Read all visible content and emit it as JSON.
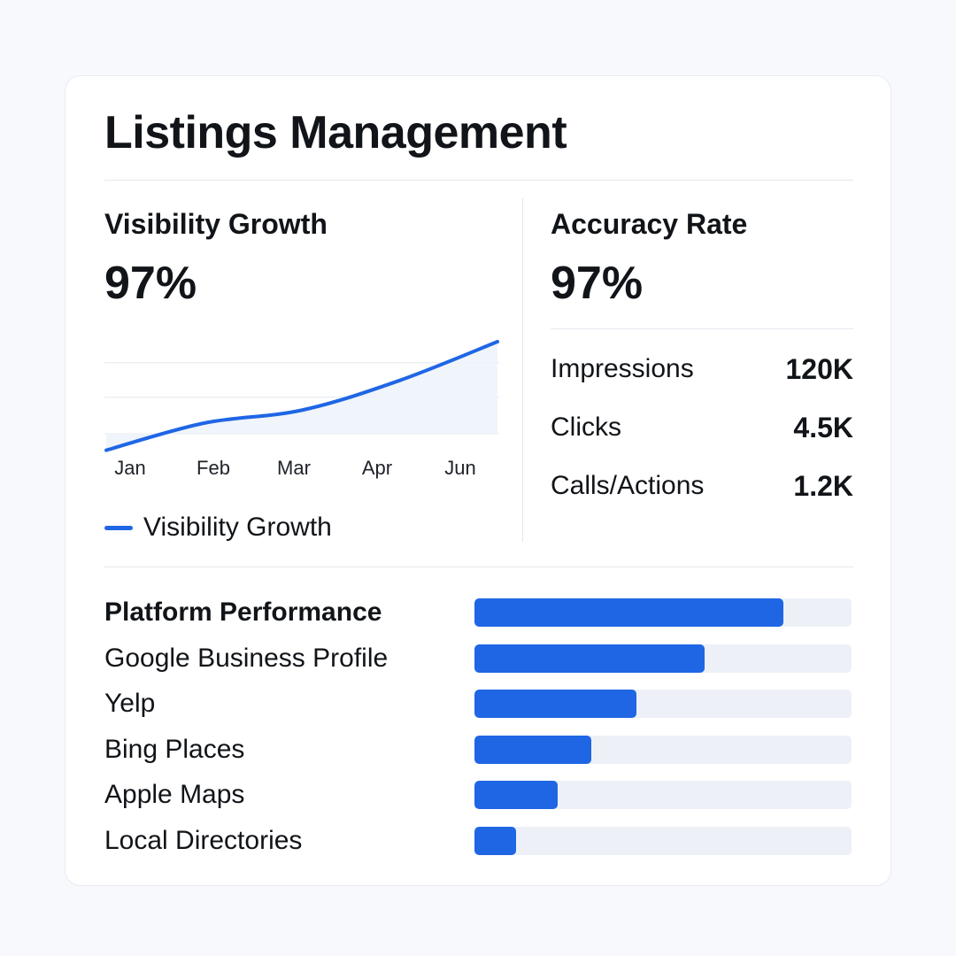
{
  "title": "Listings Management",
  "visibility": {
    "title": "Visibility Growth",
    "value": "97%"
  },
  "accuracy": {
    "title": "Accuracy Rate",
    "value": "97%"
  },
  "stats": [
    {
      "label": "Impressions",
      "value": "120K"
    },
    {
      "label": "Clicks",
      "value": "4.5K"
    },
    {
      "label": "Calls/Actions",
      "value": "1.2K"
    }
  ],
  "platform_title": "Platform Performance",
  "colors": {
    "accent": "#1f66e5",
    "track": "#edf1f7",
    "area_fill": "#eef3fb"
  },
  "chart_data": [
    {
      "type": "area",
      "categories": [
        "Jan",
        "Feb",
        "Mar",
        "Apr",
        "Jun"
      ],
      "series": [
        {
          "name": "Visibility Growth",
          "values": [
            16,
            37,
            47,
            70,
            100
          ]
        }
      ],
      "legend": "bottom-left",
      "grid": true,
      "ylim": [
        0,
        100
      ]
    },
    {
      "type": "bar",
      "orientation": "horizontal",
      "categories": [
        "",
        "Google Business Profile",
        "Yelp",
        "Bing Places",
        "Apple Maps",
        "Local Directories"
      ],
      "values": [
        82,
        61,
        43,
        31,
        22,
        11
      ],
      "xlim": [
        0,
        100
      ]
    }
  ]
}
